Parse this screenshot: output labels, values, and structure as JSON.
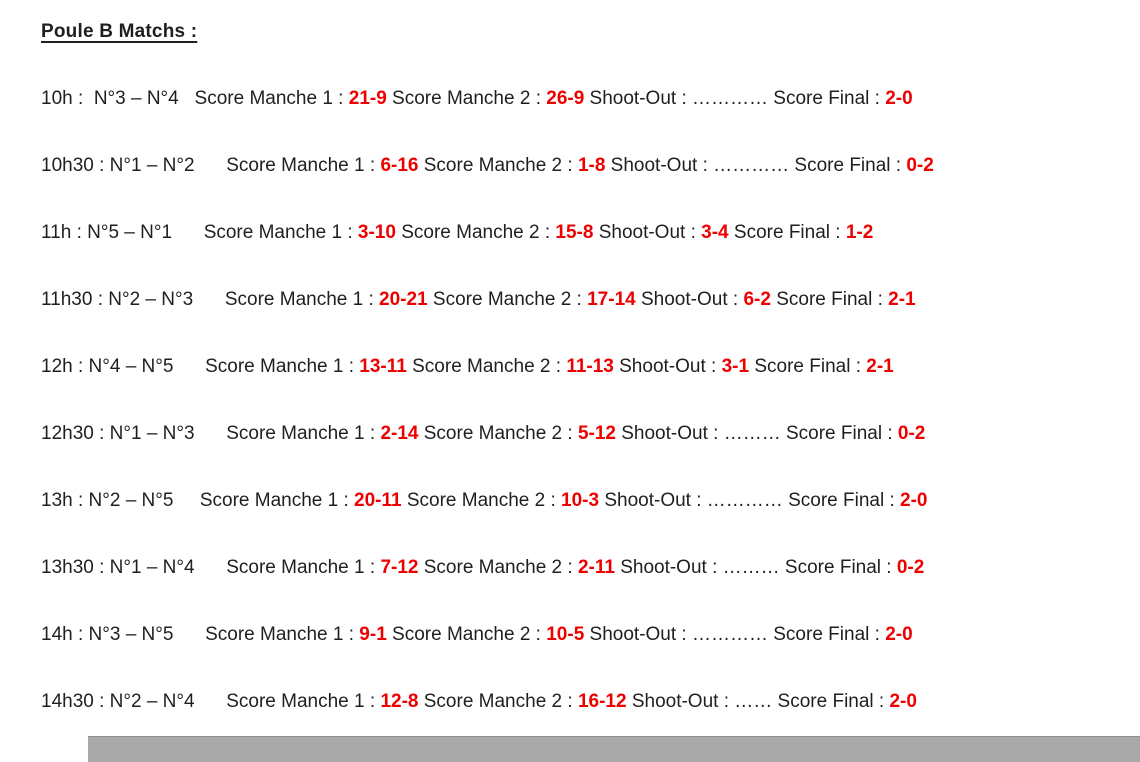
{
  "title": "Poule B Matchs :",
  "colors": {
    "score_red": "#ee0000",
    "text_black": "#1f1f1f",
    "page_edge_gray": "#a9a9a9"
  },
  "matches": [
    {
      "parts": [
        {
          "t": "10h :  N°3 – N°4   Score Manche 1 : "
        },
        {
          "t": "21-9",
          "red": true
        },
        {
          "t": " Score Manche 2 : "
        },
        {
          "t": "26-9",
          "red": true
        },
        {
          "t": " Shoot-Out : ………… Score Final : "
        },
        {
          "t": "2-0",
          "red": true
        }
      ]
    },
    {
      "parts": [
        {
          "t": "10h30 : N°1 – N°2      Score Manche 1 : "
        },
        {
          "t": "6-16",
          "red": true
        },
        {
          "t": " Score Manche 2 : "
        },
        {
          "t": "1-8",
          "red": true
        },
        {
          "t": " Shoot-Out : ………… Score Final : "
        },
        {
          "t": "0-2",
          "red": true
        }
      ]
    },
    {
      "parts": [
        {
          "t": "11h : N°5 – N°1      Score Manche 1 : "
        },
        {
          "t": "3-10",
          "red": true
        },
        {
          "t": " Score Manche 2 : "
        },
        {
          "t": "15-8",
          "red": true
        },
        {
          "t": " Shoot-Out : "
        },
        {
          "t": "3-4",
          "red": true
        },
        {
          "t": " Score Final : "
        },
        {
          "t": "1-2",
          "red": true
        }
      ]
    },
    {
      "parts": [
        {
          "t": "11h30 : N°2 – N°3      Score Manche 1 : "
        },
        {
          "t": "20-21",
          "red": true
        },
        {
          "t": " Score Manche 2 : "
        },
        {
          "t": "17-14",
          "red": true
        },
        {
          "t": " Shoot-Out : "
        },
        {
          "t": "6-2",
          "red": true
        },
        {
          "t": " Score Final : "
        },
        {
          "t": "2-1",
          "red": true
        }
      ]
    },
    {
      "parts": [
        {
          "t": "12h : N°4 – N°5      Score Manche 1 : "
        },
        {
          "t": "13-11",
          "red": true
        },
        {
          "t": " Score Manche 2 : "
        },
        {
          "t": "11-13",
          "red": true
        },
        {
          "t": " Shoot-Out : "
        },
        {
          "t": "3-1",
          "red": true
        },
        {
          "t": " Score Final : "
        },
        {
          "t": "2-1",
          "red": true
        }
      ]
    },
    {
      "parts": [
        {
          "t": "12h30 : N°1 – N°3      Score Manche 1 : "
        },
        {
          "t": "2-14",
          "red": true
        },
        {
          "t": " Score Manche 2 : "
        },
        {
          "t": "5-12",
          "red": true
        },
        {
          "t": " Shoot-Out : ……… Score Final : "
        },
        {
          "t": "0-2",
          "red": true
        }
      ]
    },
    {
      "parts": [
        {
          "t": "13h : N°2 – N°5     Score Manche 1 : "
        },
        {
          "t": "20-11",
          "red": true
        },
        {
          "t": " Score Manche 2 : "
        },
        {
          "t": "10-3",
          "red": true
        },
        {
          "t": " Shoot-Out : ………… Score Final : "
        },
        {
          "t": "2-0",
          "red": true
        }
      ]
    },
    {
      "parts": [
        {
          "t": "13h30 : N°1 – N°4      Score Manche 1 : "
        },
        {
          "t": "7-12",
          "red": true
        },
        {
          "t": " Score Manche 2 : "
        },
        {
          "t": "2-11",
          "red": true
        },
        {
          "t": " Shoot-Out : ……… Score Final : "
        },
        {
          "t": "0-2",
          "red": true
        }
      ]
    },
    {
      "parts": [
        {
          "t": "14h : N°3 – N°5      Score Manche 1 : "
        },
        {
          "t": "9-1",
          "red": true
        },
        {
          "t": " Score Manche 2 : "
        },
        {
          "t": "10-5",
          "red": true
        },
        {
          "t": " Shoot-Out : ………… Score Final : "
        },
        {
          "t": "2-0",
          "red": true
        }
      ]
    },
    {
      "parts": [
        {
          "t": "14h30 : N°2 – N°4      Score Manche 1 : "
        },
        {
          "t": "12-8",
          "red": true
        },
        {
          "t": " Score Manche 2 : "
        },
        {
          "t": "16-12",
          "red": true
        },
        {
          "t": " Shoot-Out : …… Score Final : "
        },
        {
          "t": "2-0",
          "red": true
        }
      ]
    }
  ]
}
